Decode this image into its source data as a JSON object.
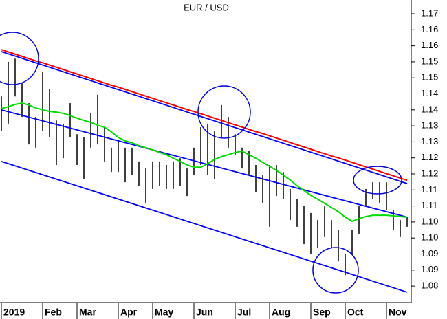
{
  "chart_data": {
    "type": "ohlc",
    "title": "EUR / USD",
    "categories": [
      "2019",
      null,
      null,
      null,
      null,
      null,
      "Feb",
      null,
      null,
      null,
      null,
      "Mar",
      null,
      null,
      null,
      null,
      null,
      "Apr",
      null,
      null,
      null,
      null,
      "May",
      null,
      null,
      null,
      null,
      null,
      "Jun",
      null,
      null,
      null,
      null,
      null,
      "Jul",
      null,
      null,
      null,
      null,
      "Aug",
      null,
      null,
      null,
      null,
      null,
      "Sep",
      null,
      null,
      null,
      null,
      "Oct",
      null,
      null,
      null,
      null,
      null,
      "Nov",
      null,
      null,
      null
    ],
    "high": [
      1.1442,
      1.155,
      1.156,
      1.1485,
      1.1421,
      1.1378,
      1.1518,
      1.1464,
      1.1367,
      1.1357,
      1.1421,
      1.1324,
      1.1314,
      1.1389,
      1.1447,
      1.1346,
      1.1282,
      1.1303,
      1.1282,
      1.1282,
      1.1239,
      1.1217,
      1.1239,
      1.1239,
      1.1228,
      1.1239,
      1.1249,
      1.1217,
      1.1282,
      1.1346,
      1.1357,
      1.1335,
      1.1415,
      1.1378,
      1.1324,
      1.1282,
      1.1271,
      1.1228,
      1.1196,
      1.1228,
      1.1228,
      1.1206,
      1.1153,
      1.1121,
      1.1099,
      1.1078,
      1.1056,
      1.1099,
      1.1056,
      1.1024,
      1.0949,
      1.1024,
      1.1099,
      1.1153,
      1.1174,
      1.1174,
      1.1174,
      1.1088,
      1.1056,
      1.1067
    ],
    "low": [
      1.1335,
      1.1357,
      1.1442,
      1.1378,
      1.1292,
      1.1282,
      1.1335,
      1.1314,
      1.1228,
      1.1249,
      1.1314,
      1.1228,
      1.1185,
      1.1282,
      1.1292,
      1.1239,
      1.1206,
      1.1206,
      1.1174,
      1.1196,
      1.1163,
      1.111,
      1.1153,
      1.1163,
      1.1153,
      1.1153,
      1.1163,
      1.1131,
      1.1196,
      1.1228,
      1.1196,
      1.1185,
      1.1314,
      1.1282,
      1.126,
      1.1217,
      1.1196,
      1.1142,
      1.111,
      1.1035,
      1.1131,
      1.1121,
      1.1056,
      1.1035,
      1.0981,
      1.0949,
      1.097,
      1.1003,
      1.097,
      1.0927,
      1.0884,
      1.0949,
      1.1013,
      1.1099,
      1.1121,
      1.111,
      1.1088,
      1.1024,
      1.1003,
      1.1035
    ],
    "color": "#000000",
    "lines": [
      {
        "color": "#ff0000",
        "values": [
          1.1588,
          1.1581,
          1.1574,
          1.1567,
          1.156,
          1.1553,
          1.1547,
          1.154,
          1.1533,
          1.1526,
          1.1519,
          1.1512,
          1.1505,
          1.1498,
          1.1491,
          1.1484,
          1.1477,
          1.1471,
          1.1464,
          1.1457,
          1.145,
          1.1443,
          1.1436,
          1.1429,
          1.1422,
          1.1415,
          1.1408,
          1.1401,
          1.1395,
          1.1388,
          1.1381,
          1.1374,
          1.1367,
          1.136,
          1.1353,
          1.1346,
          1.1339,
          1.1332,
          1.1326,
          1.1319,
          1.1312,
          1.1305,
          1.1298,
          1.1291,
          1.1284,
          1.1277,
          1.127,
          1.1263,
          1.1256,
          1.125,
          1.1243,
          1.1236,
          1.1229,
          1.1222,
          1.1215,
          1.1208,
          1.1201,
          1.1194,
          1.1187,
          1.118
        ]
      },
      {
        "color": "#00dd00",
        "values": [
          1.1404,
          1.141,
          1.1417,
          1.1421,
          1.1415,
          1.1406,
          1.14,
          1.1395,
          1.1393,
          1.1389,
          1.1382,
          1.1374,
          1.1367,
          1.1361,
          1.1352,
          1.1346,
          1.1331,
          1.1314,
          1.1303,
          1.1297,
          1.1288,
          1.1282,
          1.1275,
          1.1267,
          1.126,
          1.1249,
          1.1239,
          1.1228,
          1.1221,
          1.1221,
          1.1232,
          1.1245,
          1.1254,
          1.126,
          1.1267,
          1.1271,
          1.126,
          1.1249,
          1.1236,
          1.1224,
          1.1211,
          1.1196,
          1.1181,
          1.1163,
          1.1148,
          1.1133,
          1.1121,
          1.1108,
          1.1095,
          1.1082,
          1.1065,
          1.1052,
          1.106,
          1.1067,
          1.1071,
          1.1071,
          1.1071,
          1.1069,
          1.1067,
          1.1065
        ]
      }
    ],
    "trendlines": [
      {
        "color": "#0000ff",
        "values": [
          1.1582,
          1.117
        ]
      },
      {
        "color": "#0000ff",
        "values": [
          1.14,
          1.1065
        ]
      },
      {
        "color": "#0000ff",
        "values": [
          1.1239,
          1.0831
        ]
      }
    ],
    "ylim": [
      1.0803,
      1.1743
    ],
    "yticks": [
      {
        "value": 1.17,
        "label": "1.17"
      },
      {
        "value": 1.165,
        "label": "1.16"
      },
      {
        "value": 1.16,
        "label": "1.16"
      },
      {
        "value": 1.155,
        "label": "1.15"
      },
      {
        "value": 1.15,
        "label": "1.15"
      },
      {
        "value": 1.145,
        "label": "1.14"
      },
      {
        "value": 1.14,
        "label": "1.14"
      },
      {
        "value": 1.135,
        "label": "1.13"
      },
      {
        "value": 1.13,
        "label": "1.13"
      },
      {
        "value": 1.125,
        "label": "1.12"
      },
      {
        "value": 1.12,
        "label": "1.12"
      },
      {
        "value": 1.115,
        "label": "1.11"
      },
      {
        "value": 1.11,
        "label": "1.11"
      },
      {
        "value": 1.105,
        "label": "1.10"
      },
      {
        "value": 1.1,
        "label": "1.10"
      },
      {
        "value": 1.095,
        "label": "1.09"
      },
      {
        "value": 1.09,
        "label": "1.09"
      },
      {
        "value": 1.085,
        "label": "1.08"
      }
    ],
    "grid": false
  }
}
